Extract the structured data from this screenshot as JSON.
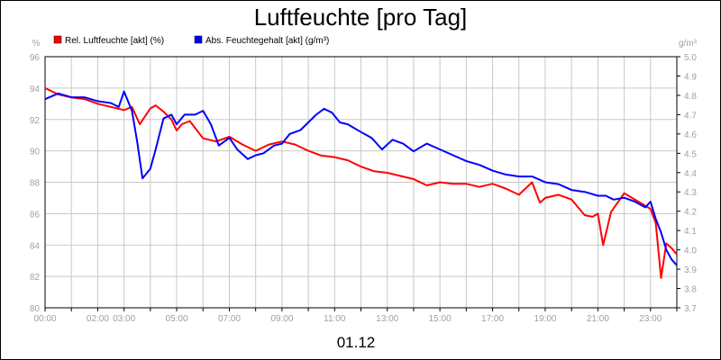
{
  "chart_data": {
    "type": "line",
    "title": "Luftfeuchte [pro Tag]",
    "xlabel": "01.12",
    "left_unit": "%",
    "right_unit": "g/m³",
    "x_ticks": [
      "00:00",
      "02:00",
      "03:00",
      "05:00",
      "07:00",
      "09:00",
      "11:00",
      "13:00",
      "15:00",
      "17:00",
      "19:00",
      "21:00",
      "23:00"
    ],
    "x_tick_hours": [
      0,
      2,
      3,
      5,
      7,
      9,
      11,
      13,
      15,
      17,
      19,
      21,
      23
    ],
    "xlim": [
      0,
      24
    ],
    "ylim_left": [
      80,
      96
    ],
    "left_ticks": [
      "96",
      "94",
      "92",
      "90",
      "88",
      "86",
      "84",
      "82",
      "80"
    ],
    "ylim_right": [
      3.7,
      5.0
    ],
    "right_ticks": [
      "5.0",
      "4.9",
      "4.8",
      "4.7",
      "4.6",
      "4.5",
      "4.4",
      "4.3",
      "4.2",
      "4.1",
      "4.0",
      "3.9",
      "3.8",
      "3.7"
    ],
    "grid": true,
    "legend_placement": "top-left",
    "series": [
      {
        "name": "Rel. Luftfeuchte [akt] (%)",
        "axis": "left",
        "color": "#ff0000",
        "x": [
          0,
          0.5,
          1,
          1.5,
          2,
          2.5,
          3,
          3.3,
          3.6,
          4,
          4.2,
          4.5,
          4.8,
          5,
          5.2,
          5.5,
          6,
          6.5,
          7,
          7.5,
          8,
          8.5,
          9,
          9.5,
          10,
          10.5,
          11,
          11.5,
          12,
          12.5,
          13,
          13.5,
          14,
          14.5,
          15,
          15.5,
          16,
          16.5,
          17,
          17.5,
          18,
          18.5,
          18.8,
          19,
          19.5,
          20,
          20.5,
          20.8,
          21,
          21.2,
          21.5,
          22,
          22.5,
          23,
          23.2,
          23.4,
          23.6,
          23.8,
          24
        ],
        "values": [
          94,
          93.6,
          93.4,
          93.3,
          93,
          92.8,
          92.6,
          92.8,
          91.7,
          92.7,
          92.9,
          92.5,
          92,
          91.3,
          91.7,
          91.9,
          90.8,
          90.6,
          90.9,
          90.4,
          90,
          90.4,
          90.6,
          90.4,
          90,
          89.7,
          89.6,
          89.4,
          89,
          88.7,
          88.6,
          88.4,
          88.2,
          87.8,
          88,
          87.9,
          87.9,
          87.7,
          87.9,
          87.6,
          87.2,
          88,
          86.7,
          87,
          87.2,
          86.9,
          85.9,
          85.8,
          86,
          84,
          86.1,
          87.3,
          86.8,
          86.3,
          85.4,
          81.9,
          84.1,
          83.8,
          83.4
        ]
      },
      {
        "name": "Abs. Feuchtegehalt [akt] (g/m³)",
        "axis": "right",
        "color": "#0000ff",
        "x": [
          0,
          0.5,
          1,
          1.5,
          2,
          2.5,
          2.8,
          3,
          3.3,
          3.5,
          3.7,
          4,
          4.2,
          4.5,
          4.8,
          5,
          5.3,
          5.7,
          6,
          6.3,
          6.6,
          7,
          7.3,
          7.7,
          8,
          8.3,
          8.7,
          9,
          9.3,
          9.7,
          10,
          10.3,
          10.6,
          10.9,
          11.2,
          11.5,
          12,
          12.4,
          12.8,
          13.2,
          13.6,
          14,
          14.5,
          15,
          15.5,
          16,
          16.5,
          17,
          17.5,
          18,
          18.5,
          19,
          19.5,
          20,
          20.5,
          21,
          21.3,
          21.6,
          22,
          22.4,
          22.8,
          23,
          23.2,
          23.4,
          23.6,
          23.8,
          24
        ],
        "values": [
          4.78,
          4.81,
          4.79,
          4.79,
          4.77,
          4.76,
          4.74,
          4.82,
          4.72,
          4.56,
          4.37,
          4.42,
          4.52,
          4.68,
          4.7,
          4.65,
          4.7,
          4.7,
          4.72,
          4.65,
          4.54,
          4.58,
          4.52,
          4.47,
          4.49,
          4.5,
          4.54,
          4.55,
          4.6,
          4.62,
          4.66,
          4.7,
          4.73,
          4.71,
          4.66,
          4.65,
          4.61,
          4.58,
          4.52,
          4.57,
          4.55,
          4.51,
          4.55,
          4.52,
          4.49,
          4.46,
          4.44,
          4.41,
          4.39,
          4.38,
          4.38,
          4.35,
          4.34,
          4.31,
          4.3,
          4.28,
          4.28,
          4.26,
          4.27,
          4.25,
          4.22,
          4.25,
          4.16,
          4.09,
          4.0,
          3.95,
          3.92
        ]
      }
    ]
  }
}
